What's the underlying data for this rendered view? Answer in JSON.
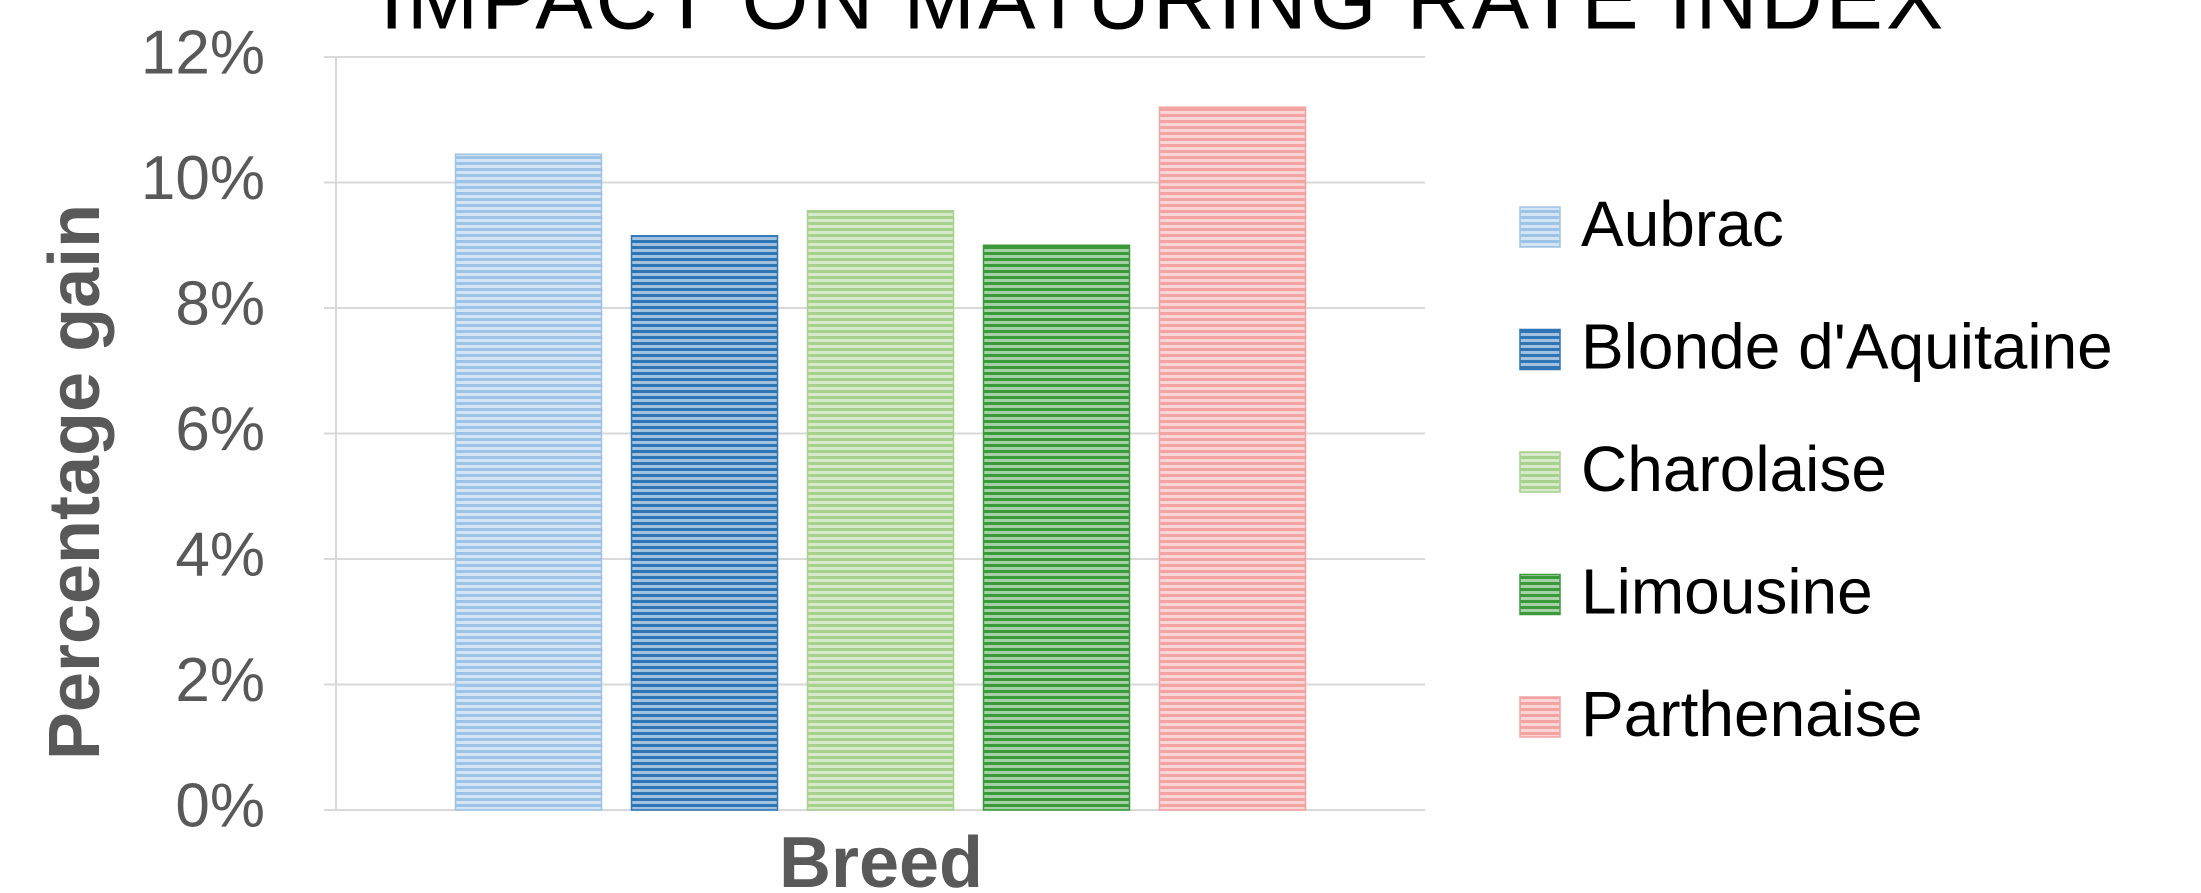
{
  "chart_data": {
    "type": "bar",
    "title": "IMPACT ON MATURING RATE INDEX",
    "x_label": "Breed",
    "y_label": "Percentage gain",
    "categories": [
      null
    ],
    "series": [
      {
        "name": "Aubrac",
        "color": "#9dc3e6",
        "values": [
          10.45
        ]
      },
      {
        "name": "Blonde d'Aquitaine",
        "color": "#2e75b6",
        "values": [
          9.15
        ]
      },
      {
        "name": "Charolaise",
        "color": "#a9d18e",
        "values": [
          9.55
        ]
      },
      {
        "name": "Limousine",
        "color": "#3a9a3a",
        "values": [
          9.0
        ]
      },
      {
        "name": "Parthenaise",
        "color": "#f4a3a3",
        "values": [
          11.2
        ]
      }
    ],
    "ylim": [
      0,
      12
    ],
    "yticks": [
      {
        "value": 0,
        "label": "0%"
      },
      {
        "value": 2,
        "label": "2%"
      },
      {
        "value": 4,
        "label": "4%"
      },
      {
        "value": 6,
        "label": "6%"
      },
      {
        "value": 8,
        "label": "8%"
      },
      {
        "value": 10,
        "label": "10%"
      },
      {
        "value": 12,
        "label": "12%"
      }
    ],
    "grid": true,
    "legend": "right"
  }
}
